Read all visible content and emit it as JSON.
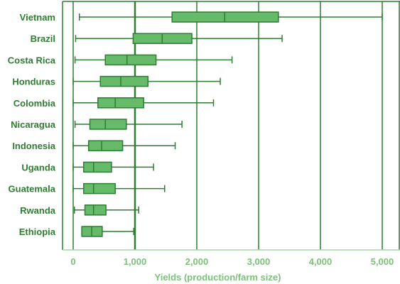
{
  "chart_data": {
    "type": "boxplot",
    "orientation": "horizontal",
    "title": "",
    "xlabel": "Yields (production/farm size)",
    "ylabel": "",
    "xlim": [
      0,
      5000
    ],
    "x_ticks": [
      0,
      1000,
      2000,
      3000,
      4000,
      5000
    ],
    "x_tick_labels": [
      "0",
      "1,000",
      "2,000",
      "3,000",
      "4,000",
      "5,000"
    ],
    "grid": "vertical",
    "reference_line": 1000,
    "categories": [
      "Vietnam",
      "Brazil",
      "Costa Rica",
      "Honduras",
      "Colombia",
      "Nicaragua",
      "Indonesia",
      "Uganda",
      "Guatemala",
      "Rwanda",
      "Ethiopia"
    ],
    "boxes": [
      {
        "min": 100,
        "q1": 1600,
        "median": 2450,
        "q3": 3320,
        "max": 5000
      },
      {
        "min": 40,
        "q1": 970,
        "median": 1440,
        "q3": 1920,
        "max": 3380
      },
      {
        "min": 30,
        "q1": 520,
        "median": 870,
        "q3": 1340,
        "max": 2570
      },
      {
        "min": 0,
        "q1": 440,
        "median": 770,
        "q3": 1210,
        "max": 2380
      },
      {
        "min": 0,
        "q1": 400,
        "median": 680,
        "q3": 1140,
        "max": 2270
      },
      {
        "min": 30,
        "q1": 270,
        "median": 520,
        "q3": 860,
        "max": 1760
      },
      {
        "min": 0,
        "q1": 250,
        "median": 460,
        "q3": 800,
        "max": 1650
      },
      {
        "min": 0,
        "q1": 170,
        "median": 330,
        "q3": 620,
        "max": 1300
      },
      {
        "min": 0,
        "q1": 170,
        "median": 330,
        "q3": 680,
        "max": 1480
      },
      {
        "min": 20,
        "q1": 190,
        "median": 330,
        "q3": 530,
        "max": 1060
      },
      {
        "min": 140,
        "q1": 140,
        "median": 300,
        "q3": 470,
        "max": 980
      }
    ],
    "colors": {
      "box_fill": "#66bb6a",
      "box_stroke": "#2e7d32",
      "grid": "#2e7d32",
      "category_text": "#2f7d32",
      "axis_text": "#7cc07a",
      "axis_line": "#a5d6a7"
    }
  }
}
